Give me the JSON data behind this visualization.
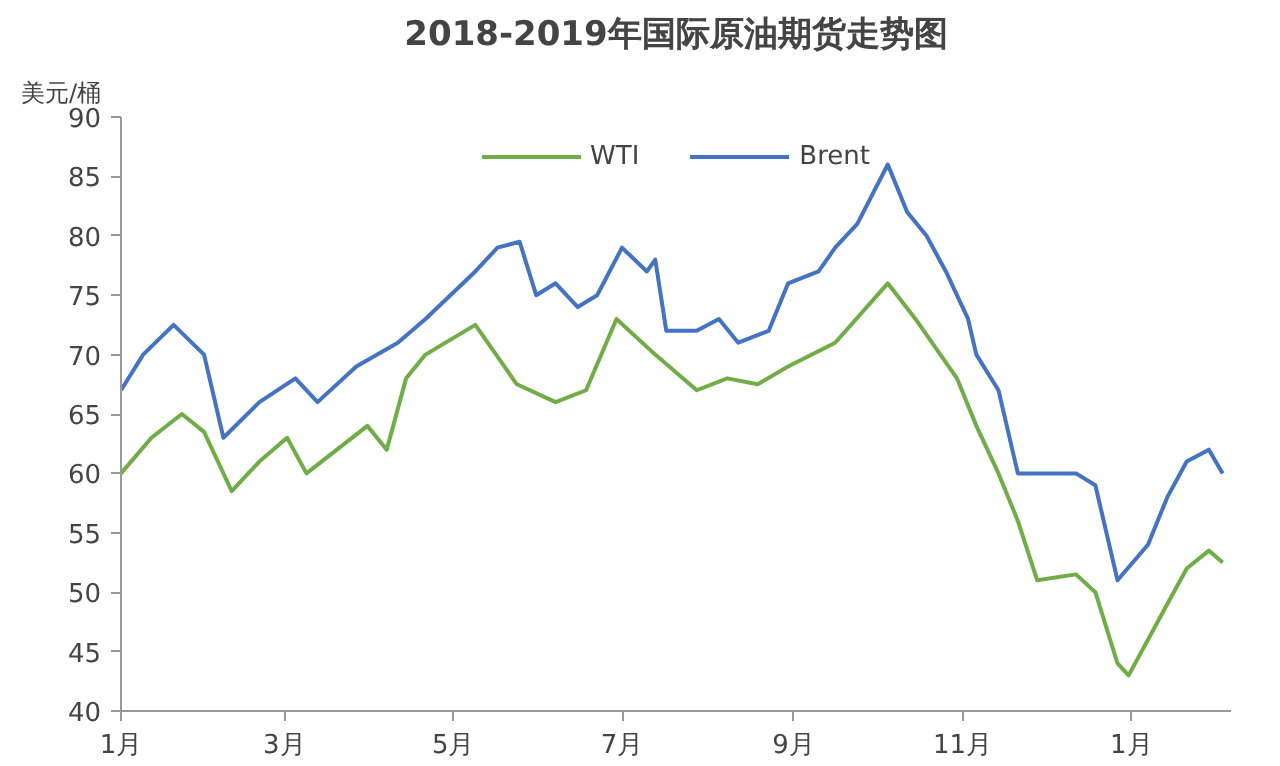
{
  "chart_data": {
    "type": "line",
    "title": "2018-2019年国际原油期货走势图",
    "ylabel": "美元/桶",
    "legend": "top",
    "grid": false,
    "xlim": [
      "2018-01-01",
      "2019-02-06"
    ],
    "xticks": [
      {
        "value": "2018-01-01",
        "label": "1月"
      },
      {
        "value": "2018-03-01",
        "label": "3月"
      },
      {
        "value": "2018-05-01",
        "label": "5月"
      },
      {
        "value": "2018-07-01",
        "label": "7月"
      },
      {
        "value": "2018-09-01",
        "label": "9月"
      },
      {
        "value": "2018-11-01",
        "label": "11月"
      },
      {
        "value": "2019-01-01",
        "label": "1月"
      }
    ],
    "ylim": [
      40,
      90
    ],
    "yticks": [
      40,
      45,
      50,
      55,
      60,
      65,
      70,
      75,
      80,
      85,
      90
    ],
    "series": [
      {
        "name": "WTI",
        "color": "#70ad47",
        "x": [
          "2018-01-01",
          "2018-01-12",
          "2018-01-23",
          "2018-01-31",
          "2018-02-10",
          "2018-02-20",
          "2018-03-02",
          "2018-03-09",
          "2018-03-20",
          "2018-03-31",
          "2018-04-07",
          "2018-04-14",
          "2018-04-21",
          "2018-05-09",
          "2018-05-24",
          "2018-06-07",
          "2018-06-18",
          "2018-06-29",
          "2018-07-13",
          "2018-07-28",
          "2018-08-08",
          "2018-08-19",
          "2018-08-30",
          "2018-09-16",
          "2018-10-05",
          "2018-10-15",
          "2018-10-30",
          "2018-11-06",
          "2018-11-14",
          "2018-11-21",
          "2018-11-28",
          "2018-12-12",
          "2018-12-19",
          "2018-12-27",
          "2018-12-31",
          "2019-01-07",
          "2019-01-14",
          "2019-01-21",
          "2019-01-29",
          "2019-02-03"
        ],
        "values": [
          60,
          63,
          65,
          63.5,
          58.5,
          61,
          63,
          60,
          62,
          64,
          62,
          68,
          70,
          72.5,
          67.5,
          66,
          67,
          73,
          70,
          67,
          68,
          67.5,
          69,
          71,
          76,
          73,
          68,
          64,
          60,
          56,
          51,
          51.5,
          50,
          44,
          43,
          46,
          49,
          52,
          53.5,
          52.5
        ]
      },
      {
        "name": "Brent",
        "color": "#4472c4",
        "x": [
          "2018-01-01",
          "2018-01-09",
          "2018-01-20",
          "2018-01-31",
          "2018-02-07",
          "2018-02-20",
          "2018-03-05",
          "2018-03-13",
          "2018-03-27",
          "2018-04-11",
          "2018-04-21",
          "2018-05-09",
          "2018-05-17",
          "2018-05-25",
          "2018-05-31",
          "2018-06-07",
          "2018-06-15",
          "2018-06-22",
          "2018-07-01",
          "2018-07-10",
          "2018-07-13",
          "2018-07-17",
          "2018-07-28",
          "2018-08-05",
          "2018-08-12",
          "2018-08-23",
          "2018-08-30",
          "2018-09-10",
          "2018-09-16",
          "2018-09-24",
          "2018-10-05",
          "2018-10-12",
          "2018-10-19",
          "2018-10-26",
          "2018-11-03",
          "2018-11-06",
          "2018-11-14",
          "2018-11-21",
          "2018-12-12",
          "2018-12-19",
          "2018-12-27",
          "2019-01-07",
          "2019-01-14",
          "2019-01-21",
          "2019-01-29",
          "2019-02-03"
        ],
        "values": [
          67,
          70,
          72.5,
          70,
          63,
          66,
          68,
          66,
          69,
          71,
          73,
          77,
          79,
          79.5,
          75,
          76,
          74,
          75,
          79,
          77,
          78,
          72,
          72,
          73,
          71,
          72,
          76,
          77,
          79,
          81,
          86,
          82,
          80,
          77,
          73,
          70,
          67,
          60,
          60,
          59,
          51,
          54,
          58,
          61,
          62,
          60
        ]
      }
    ]
  }
}
